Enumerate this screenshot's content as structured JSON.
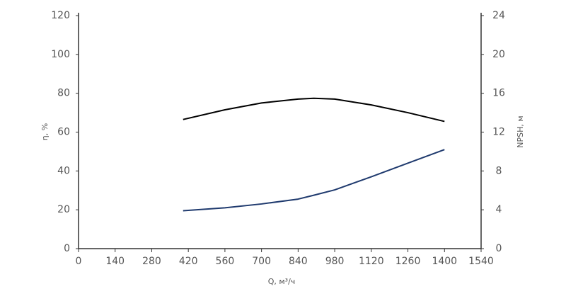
{
  "chart_data": {
    "type": "line",
    "x_label": "Q, м³/ч",
    "y_label": "η, %",
    "y2_label": "NPSH, м",
    "x": [
      400,
      560,
      700,
      840,
      900,
      980,
      1120,
      1260,
      1400
    ],
    "series": [
      {
        "color": "#000000",
        "values": [
          66.5,
          71.5,
          75,
          77,
          77.4,
          77,
          74,
          70,
          65.5
        ]
      },
      {
        "color": "#1f3a6e",
        "axis": "y2",
        "values": [
          3.9,
          4.2,
          4.6,
          5.1,
          5.5,
          6.05,
          7.4,
          8.8,
          10.2
        ]
      }
    ],
    "xlim": [
      0,
      1540
    ],
    "xticks": [
      0,
      140,
      280,
      420,
      560,
      700,
      840,
      980,
      1120,
      1260,
      1400,
      1540
    ],
    "ylim": [
      0,
      120
    ],
    "yticks": [
      0,
      20,
      40,
      60,
      80,
      100,
      120
    ],
    "y2lim": [
      0,
      24
    ],
    "y2ticks": [
      0,
      4,
      8,
      12,
      16,
      20,
      24
    ]
  }
}
